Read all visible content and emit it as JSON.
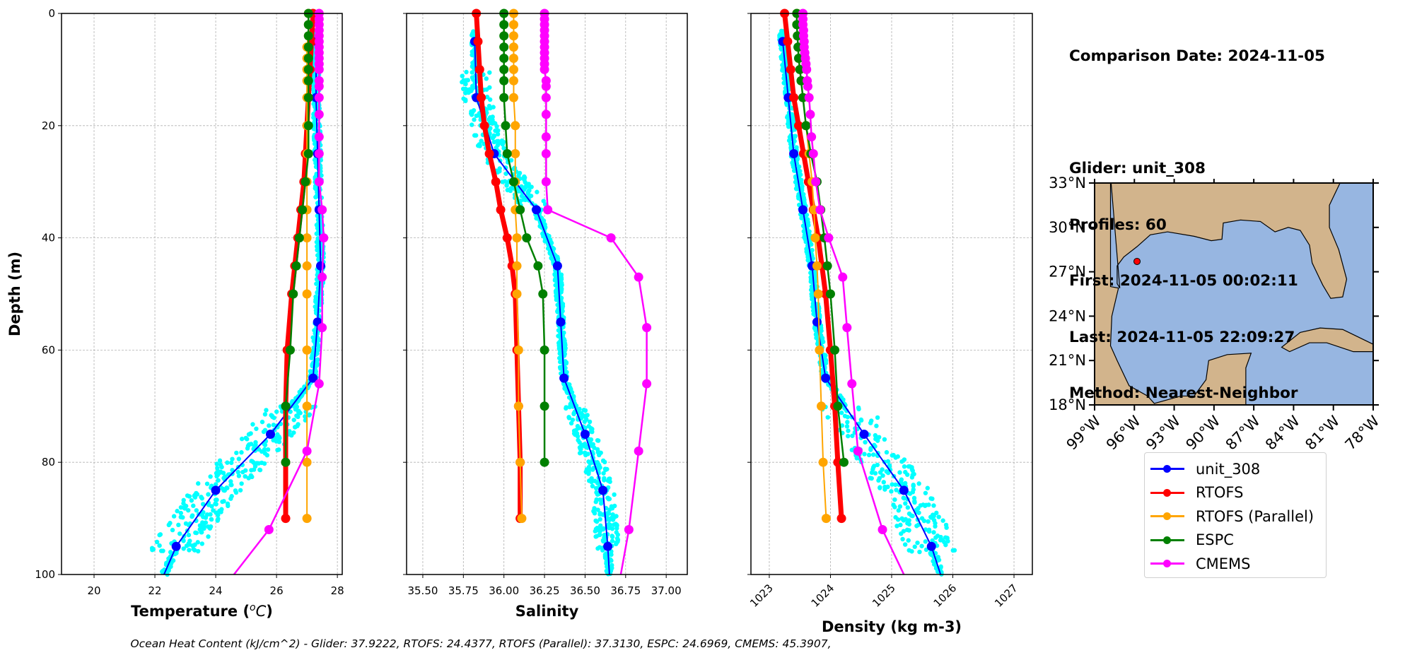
{
  "info": {
    "comparison_date": "Comparison Date: 2024-11-05",
    "glider": "Glider: unit_308",
    "profiles": "Profiles: 60",
    "first": "First: 2024-11-05 00:02:11",
    "last": "Last: 2024-11-05 22:09:27",
    "method": "Method: Nearest-Neighbor"
  },
  "footer": {
    "ohc_text": "Ocean Heat Content (kJ/cm^2) - Glider: 37.9222,  RTOFS: 24.4377,  RTOFS (Parallel): 37.3130,  ESPC: 24.6969,  CMEMS: 45.3907,"
  },
  "legend": [
    {
      "label": "unit_308",
      "color": "#0000ff"
    },
    {
      "label": "RTOFS",
      "color": "#ff0000"
    },
    {
      "label": "RTOFS (Parallel)",
      "color": "#ffa500"
    },
    {
      "label": "ESPC",
      "color": "#008000"
    },
    {
      "label": "CMEMS",
      "color": "#ff00ff"
    }
  ],
  "colors": {
    "glider_scatter": "#00ffff",
    "land": "#d2b48c",
    "ocean": "#97b6e1",
    "grid": "#b0b0b0",
    "glider_location": "#ff0000"
  },
  "chart_data": [
    {
      "type": "line",
      "title": "",
      "xlabel": "Temperature (°C)",
      "ylabel": "Depth (m)",
      "xlim": [
        18.93,
        28.16
      ],
      "ylim": [
        100,
        0
      ],
      "y_inverted": true,
      "xticks": [
        20,
        22,
        24,
        26,
        28
      ],
      "yticks": [
        0,
        20,
        40,
        60,
        80,
        100
      ],
      "grid": true,
      "series": [
        {
          "name": "unit_308",
          "depth": [
            5,
            15,
            25,
            35,
            45,
            55,
            65,
            75,
            85,
            95,
            100
          ],
          "values": [
            27.3,
            27.3,
            27.35,
            27.4,
            27.45,
            27.35,
            27.2,
            25.8,
            24.0,
            22.7,
            22.3
          ]
        },
        {
          "name": "RTOFS",
          "depth": [
            0,
            5,
            10,
            15,
            20,
            25,
            30,
            35,
            40,
            45,
            50,
            60,
            70,
            80,
            90
          ],
          "values": [
            27.2,
            27.15,
            27.1,
            27.05,
            27.0,
            26.95,
            26.9,
            26.8,
            26.7,
            26.6,
            26.5,
            26.35,
            26.3,
            26.3,
            26.3
          ]
        },
        {
          "name": "RTOFS (Parallel)",
          "depth": [
            0,
            2,
            4,
            6,
            8,
            10,
            12,
            15,
            20,
            25,
            30,
            35,
            40,
            45,
            50,
            60,
            70,
            80,
            90
          ],
          "values": [
            27.05,
            27.05,
            27.05,
            27.0,
            27.0,
            27.0,
            27.0,
            27.0,
            27.0,
            27.0,
            27.0,
            27.0,
            27.0,
            27.0,
            27.0,
            27.0,
            27.0,
            27.0,
            27.0
          ]
        },
        {
          "name": "ESPC",
          "depth": [
            0,
            2,
            4,
            6,
            8,
            10,
            12,
            15,
            20,
            25,
            30,
            35,
            40,
            45,
            50,
            60,
            70,
            80
          ],
          "values": [
            27.05,
            27.05,
            27.05,
            27.05,
            27.05,
            27.05,
            27.05,
            27.05,
            27.05,
            27.05,
            26.95,
            26.85,
            26.75,
            26.65,
            26.55,
            26.45,
            26.3,
            26.3
          ]
        },
        {
          "name": "CMEMS",
          "depth": [
            0,
            1,
            2,
            3,
            4,
            5,
            6,
            7,
            8,
            9,
            10,
            12,
            13,
            15,
            18,
            22,
            25,
            30,
            35,
            40,
            47,
            56,
            66,
            78,
            92,
            100
          ],
          "values": [
            27.4,
            27.4,
            27.4,
            27.4,
            27.4,
            27.4,
            27.4,
            27.4,
            27.4,
            27.4,
            27.4,
            27.4,
            27.4,
            27.4,
            27.4,
            27.4,
            27.4,
            27.4,
            27.5,
            27.55,
            27.5,
            27.5,
            27.4,
            27.0,
            25.75,
            24.6
          ]
        }
      ],
      "scatter": {
        "name": "glider profiles",
        "note": "60 glider profiles, cyan points",
        "range_x": [
          21.8,
          27.7
        ],
        "range_depth": [
          3,
          100
        ]
      }
    },
    {
      "type": "line",
      "title": "",
      "xlabel": "Salinity",
      "ylabel": "",
      "xlim": [
        35.4,
        37.13
      ],
      "ylim": [
        100,
        0
      ],
      "y_inverted": true,
      "xticks": [
        35.5,
        35.75,
        36.0,
        36.25,
        36.5,
        36.75,
        37.0
      ],
      "xticklabels": [
        "35.50",
        "35.75",
        "36.00",
        "36.25",
        "36.50",
        "36.75",
        "37.00"
      ],
      "yticks": [
        0,
        20,
        40,
        60,
        80,
        100
      ],
      "grid": true,
      "series": [
        {
          "name": "unit_308",
          "depth": [
            5,
            15,
            25,
            35,
            45,
            55,
            65,
            75,
            85,
            95,
            100
          ],
          "values": [
            35.82,
            35.83,
            35.94,
            36.2,
            36.33,
            36.35,
            36.37,
            36.5,
            36.61,
            36.64,
            36.65
          ]
        },
        {
          "name": "RTOFS",
          "depth": [
            0,
            5,
            10,
            15,
            20,
            25,
            30,
            35,
            40,
            45,
            50,
            60,
            70,
            80,
            90
          ],
          "values": [
            35.83,
            35.84,
            35.85,
            35.86,
            35.88,
            35.91,
            35.95,
            35.98,
            36.02,
            36.05,
            36.07,
            36.08,
            36.09,
            36.1,
            36.1
          ]
        },
        {
          "name": "RTOFS (Parallel)",
          "depth": [
            0,
            2,
            4,
            6,
            8,
            10,
            12,
            15,
            20,
            25,
            30,
            35,
            40,
            45,
            50,
            60,
            70,
            80,
            90
          ],
          "values": [
            36.06,
            36.06,
            36.06,
            36.06,
            36.06,
            36.06,
            36.06,
            36.06,
            36.07,
            36.07,
            36.07,
            36.07,
            36.08,
            36.08,
            36.08,
            36.09,
            36.09,
            36.1,
            36.11
          ]
        },
        {
          "name": "ESPC",
          "depth": [
            0,
            2,
            4,
            6,
            8,
            10,
            12,
            15,
            20,
            25,
            30,
            35,
            40,
            45,
            50,
            60,
            70,
            80
          ],
          "values": [
            36.0,
            36.0,
            36.0,
            36.0,
            36.0,
            36.0,
            36.0,
            36.0,
            36.01,
            36.02,
            36.06,
            36.1,
            36.14,
            36.21,
            36.24,
            36.25,
            36.25,
            36.25
          ]
        },
        {
          "name": "CMEMS",
          "depth": [
            0,
            1,
            2,
            3,
            4,
            5,
            6,
            7,
            8,
            9,
            10,
            12,
            13,
            15,
            18,
            22,
            25,
            30,
            35,
            40,
            47,
            56,
            66,
            78,
            92,
            100
          ],
          "values": [
            36.25,
            36.25,
            36.25,
            36.25,
            36.25,
            36.25,
            36.25,
            36.25,
            36.25,
            36.25,
            36.25,
            36.26,
            36.26,
            36.26,
            36.26,
            36.26,
            36.26,
            36.26,
            36.27,
            36.66,
            36.83,
            36.88,
            36.88,
            36.83,
            36.77,
            36.72
          ]
        }
      ],
      "scatter": {
        "name": "glider profiles",
        "note": "60 glider profiles, cyan points",
        "range_x": [
          35.72,
          36.68
        ],
        "range_depth": [
          3,
          100
        ]
      }
    },
    {
      "type": "line",
      "title": "",
      "xlabel": "Density (kg m-3)",
      "ylabel": "",
      "xlim": [
        1022.7,
        1027.3
      ],
      "ylim": [
        100,
        0
      ],
      "y_inverted": true,
      "xticks": [
        1023,
        1024,
        1025,
        1026,
        1027
      ],
      "xticklabels": [
        "1023",
        "1024",
        "1025",
        "1026",
        "1027"
      ],
      "xtick_rotation": 45,
      "yticks": [
        0,
        20,
        40,
        60,
        80,
        100
      ],
      "grid": true,
      "series": [
        {
          "name": "unit_308",
          "depth": [
            5,
            15,
            25,
            35,
            45,
            55,
            65,
            75,
            85,
            95,
            100
          ],
          "values": [
            1023.22,
            1023.31,
            1023.4,
            1023.55,
            1023.7,
            1023.78,
            1023.92,
            1024.55,
            1025.2,
            1025.65,
            1025.8
          ]
        },
        {
          "name": "RTOFS",
          "depth": [
            0,
            5,
            10,
            15,
            20,
            25,
            30,
            35,
            40,
            45,
            50,
            60,
            70,
            80,
            90
          ],
          "values": [
            1023.25,
            1023.3,
            1023.35,
            1023.4,
            1023.48,
            1023.56,
            1023.64,
            1023.72,
            1023.8,
            1023.86,
            1023.92,
            1024.0,
            1024.07,
            1024.12,
            1024.18
          ]
        },
        {
          "name": "RTOFS (Parallel)",
          "depth": [
            0,
            2,
            4,
            6,
            8,
            10,
            12,
            15,
            20,
            25,
            30,
            35,
            40,
            45,
            50,
            60,
            70,
            80,
            90
          ],
          "values": [
            1023.45,
            1023.45,
            1023.46,
            1023.47,
            1023.48,
            1023.5,
            1023.52,
            1023.55,
            1023.6,
            1023.65,
            1023.7,
            1023.73,
            1023.75,
            1023.78,
            1023.8,
            1023.82,
            1023.85,
            1023.88,
            1023.93
          ]
        },
        {
          "name": "ESPC",
          "depth": [
            0,
            2,
            4,
            6,
            8,
            10,
            12,
            15,
            20,
            25,
            30,
            35,
            40,
            45,
            50,
            60,
            70,
            80
          ],
          "values": [
            1023.45,
            1023.45,
            1023.46,
            1023.47,
            1023.48,
            1023.5,
            1023.52,
            1023.55,
            1023.6,
            1023.68,
            1023.78,
            1023.84,
            1023.9,
            1023.95,
            1024.0,
            1024.07,
            1024.12,
            1024.22
          ]
        },
        {
          "name": "CMEMS",
          "depth": [
            0,
            1,
            2,
            3,
            4,
            5,
            6,
            7,
            8,
            9,
            10,
            12,
            13,
            15,
            18,
            22,
            25,
            30,
            35,
            40,
            47,
            56,
            66,
            78,
            92,
            100
          ],
          "values": [
            1023.55,
            1023.55,
            1023.55,
            1023.56,
            1023.56,
            1023.57,
            1023.57,
            1023.58,
            1023.59,
            1023.6,
            1023.61,
            1023.62,
            1023.63,
            1023.65,
            1023.67,
            1023.69,
            1023.72,
            1023.76,
            1023.83,
            1023.97,
            1024.2,
            1024.27,
            1024.35,
            1024.45,
            1024.85,
            1025.2
          ]
        }
      ],
      "scatter": {
        "name": "glider profiles",
        "note": "60 glider profiles, cyan points",
        "range_x": [
          1023.1,
          1025.9
        ],
        "range_depth": [
          3,
          100
        ]
      }
    },
    {
      "type": "map",
      "title": "",
      "lon_range": [
        -99,
        -78
      ],
      "lat_range": [
        18,
        33
      ],
      "xticklabels": [
        "99°W",
        "96°W",
        "93°W",
        "90°W",
        "87°W",
        "84°W",
        "81°W",
        "78°W"
      ],
      "yticklabels": [
        "18°N",
        "21°N",
        "24°N",
        "27°N",
        "30°N",
        "33°N"
      ],
      "xtick_values": [
        -99,
        -96,
        -93,
        -90,
        -87,
        -84,
        -81,
        -78
      ],
      "ytick_values": [
        18,
        21,
        24,
        27,
        30,
        33
      ],
      "marker": {
        "name": "glider location",
        "lon": -95.8,
        "lat": 27.7
      }
    }
  ]
}
